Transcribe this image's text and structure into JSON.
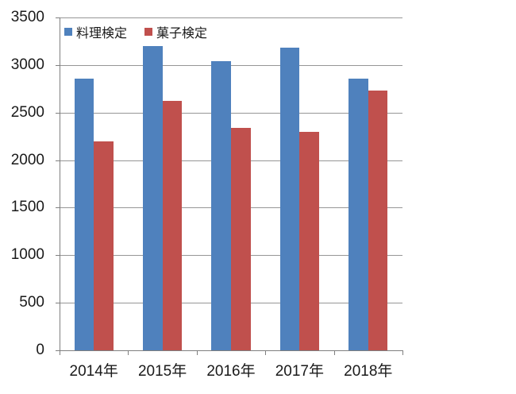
{
  "chart_data": {
    "type": "bar",
    "title": "",
    "categories": [
      "2014年",
      "2015年",
      "2016年",
      "2017年",
      "2018年"
    ],
    "series": [
      {
        "name": "料理検定",
        "color": "#4F81BD",
        "values": [
          2860,
          3200,
          3040,
          3180,
          2860
        ]
      },
      {
        "name": "菓子検定",
        "color": "#C0504D",
        "values": [
          2200,
          2620,
          2340,
          2300,
          2730
        ]
      }
    ],
    "ylim": [
      0,
      3500
    ],
    "yticks": [
      0,
      500,
      1000,
      1500,
      2000,
      2500,
      3000,
      3500
    ],
    "ytick_labels": [
      "0",
      "500",
      "1000",
      "1500",
      "2000",
      "2500",
      "3000",
      "3500"
    ],
    "grid": true,
    "legend_position": "top-left",
    "xlabel": "",
    "ylabel": ""
  },
  "colors": {
    "series_blue": "#4F81BD",
    "series_red": "#C0504D",
    "gridline": "#969696",
    "axis": "#7F7F7F",
    "text": "#1A1A1A",
    "background": "#FFFFFF"
  }
}
